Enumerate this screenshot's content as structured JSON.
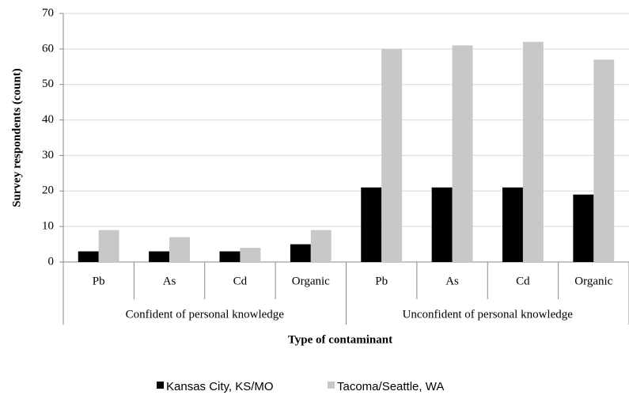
{
  "chart_data": {
    "type": "bar",
    "x_label": "Type of contaminant",
    "y_label": "Survey respondents (count)",
    "category_groups": [
      {
        "label": "Confident of personal knowledge",
        "categories": [
          "Pb",
          "As",
          "Cd",
          "Organic"
        ]
      },
      {
        "label": "Unconfident of personal knowledge",
        "categories": [
          "Pb",
          "As",
          "Cd",
          "Organic"
        ]
      }
    ],
    "series": [
      {
        "name": "Kansas City, KS/MO",
        "color": "#000000",
        "values": [
          3,
          3,
          3,
          5,
          21,
          21,
          21,
          19
        ]
      },
      {
        "name": "Tacoma/Seattle, WA",
        "color": "#c8c8c8",
        "values": [
          9,
          7,
          4,
          9,
          60,
          61,
          62,
          57
        ]
      }
    ],
    "ylim": [
      0,
      70
    ],
    "yticks": [
      0,
      10,
      20,
      30,
      40,
      50,
      60,
      70
    ],
    "grid": true,
    "legend": "bottom"
  }
}
